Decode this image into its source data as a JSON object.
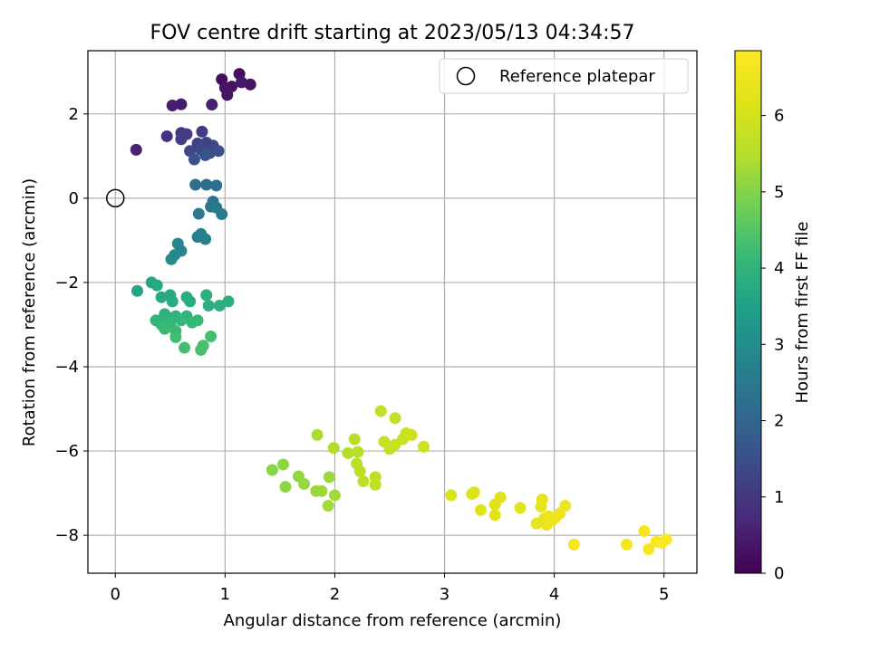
{
  "chart_data": {
    "type": "scatter",
    "title": "FOV centre drift starting at 2023/05/13 04:34:57",
    "xlabel": "Angular distance from reference (arcmin)",
    "ylabel": "Rotation from reference (arcmin)",
    "xlim": [
      -0.25,
      5.3
    ],
    "ylim": [
      -8.9,
      3.5
    ],
    "xticks": [
      0,
      1,
      2,
      3,
      4,
      5
    ],
    "yticks": [
      -8,
      -6,
      -4,
      -2,
      0,
      2
    ],
    "grid": true,
    "legend": {
      "placement": "top-right",
      "entries": [
        "Reference platepar"
      ]
    },
    "reference": {
      "x": 0,
      "y": 0
    },
    "colorbar": {
      "label": "Hours from first FF file",
      "range": [
        0,
        6.85
      ],
      "ticks": [
        0,
        1,
        2,
        3,
        4,
        5,
        6
      ],
      "colormap": "viridis"
    },
    "points": [
      {
        "x": 0.97,
        "y": 2.82,
        "t": 0.2
      },
      {
        "x": 1.13,
        "y": 2.95,
        "t": 0.25
      },
      {
        "x": 1.06,
        "y": 2.65,
        "t": 0.3
      },
      {
        "x": 1.23,
        "y": 2.7,
        "t": 0.3
      },
      {
        "x": 1.0,
        "y": 2.62,
        "t": 0.35
      },
      {
        "x": 1.02,
        "y": 2.45,
        "t": 0.35
      },
      {
        "x": 1.15,
        "y": 2.75,
        "t": 0.4
      },
      {
        "x": 0.6,
        "y": 2.23,
        "t": 0.45
      },
      {
        "x": 0.52,
        "y": 2.2,
        "t": 0.5
      },
      {
        "x": 0.88,
        "y": 2.22,
        "t": 0.55
      },
      {
        "x": 0.19,
        "y": 1.15,
        "t": 0.6
      },
      {
        "x": 0.47,
        "y": 1.47,
        "t": 0.9
      },
      {
        "x": 0.6,
        "y": 1.55,
        "t": 1.0
      },
      {
        "x": 0.65,
        "y": 1.52,
        "t": 1.05
      },
      {
        "x": 0.79,
        "y": 1.58,
        "t": 1.1
      },
      {
        "x": 0.6,
        "y": 1.4,
        "t": 1.15
      },
      {
        "x": 0.75,
        "y": 1.3,
        "t": 1.2
      },
      {
        "x": 0.83,
        "y": 1.32,
        "t": 1.25
      },
      {
        "x": 0.89,
        "y": 1.25,
        "t": 1.3
      },
      {
        "x": 0.68,
        "y": 1.12,
        "t": 1.35
      },
      {
        "x": 0.78,
        "y": 1.15,
        "t": 1.4
      },
      {
        "x": 0.86,
        "y": 1.07,
        "t": 1.45
      },
      {
        "x": 0.94,
        "y": 1.12,
        "t": 1.5
      },
      {
        "x": 0.72,
        "y": 0.92,
        "t": 1.55
      },
      {
        "x": 0.82,
        "y": 1.02,
        "t": 1.6
      },
      {
        "x": 0.73,
        "y": 0.32,
        "t": 2.2
      },
      {
        "x": 0.83,
        "y": 0.32,
        "t": 2.25
      },
      {
        "x": 0.92,
        "y": 0.3,
        "t": 2.3
      },
      {
        "x": 0.89,
        "y": -0.08,
        "t": 2.35
      },
      {
        "x": 0.87,
        "y": -0.2,
        "t": 2.4
      },
      {
        "x": 0.92,
        "y": -0.22,
        "t": 2.45
      },
      {
        "x": 0.76,
        "y": -0.37,
        "t": 2.5
      },
      {
        "x": 0.97,
        "y": -0.38,
        "t": 2.55
      },
      {
        "x": 0.78,
        "y": -0.85,
        "t": 2.6
      },
      {
        "x": 0.75,
        "y": -0.92,
        "t": 2.65
      },
      {
        "x": 0.82,
        "y": -0.97,
        "t": 2.7
      },
      {
        "x": 0.57,
        "y": -1.08,
        "t": 2.8
      },
      {
        "x": 0.6,
        "y": -1.25,
        "t": 2.85
      },
      {
        "x": 0.54,
        "y": -1.35,
        "t": 2.9
      },
      {
        "x": 0.51,
        "y": -1.45,
        "t": 2.95
      },
      {
        "x": 0.2,
        "y": -2.2,
        "t": 3.6
      },
      {
        "x": 0.33,
        "y": -2.0,
        "t": 3.65
      },
      {
        "x": 0.38,
        "y": -2.07,
        "t": 3.7
      },
      {
        "x": 0.42,
        "y": -2.35,
        "t": 3.7
      },
      {
        "x": 0.5,
        "y": -2.3,
        "t": 3.75
      },
      {
        "x": 0.52,
        "y": -2.45,
        "t": 3.75
      },
      {
        "x": 0.65,
        "y": -2.35,
        "t": 3.8
      },
      {
        "x": 0.68,
        "y": -2.45,
        "t": 3.8
      },
      {
        "x": 0.83,
        "y": -2.3,
        "t": 3.85
      },
      {
        "x": 0.85,
        "y": -2.55,
        "t": 3.85
      },
      {
        "x": 0.95,
        "y": -2.55,
        "t": 3.9
      },
      {
        "x": 1.03,
        "y": -2.45,
        "t": 3.9
      },
      {
        "x": 0.45,
        "y": -2.75,
        "t": 3.95
      },
      {
        "x": 0.5,
        "y": -2.85,
        "t": 3.95
      },
      {
        "x": 0.55,
        "y": -2.8,
        "t": 4.0
      },
      {
        "x": 0.65,
        "y": -2.8,
        "t": 4.0
      },
      {
        "x": 0.37,
        "y": -2.9,
        "t": 4.05
      },
      {
        "x": 0.42,
        "y": -3.0,
        "t": 4.05
      },
      {
        "x": 0.5,
        "y": -3.0,
        "t": 4.1
      },
      {
        "x": 0.6,
        "y": -2.9,
        "t": 4.1
      },
      {
        "x": 0.7,
        "y": -2.95,
        "t": 4.15
      },
      {
        "x": 0.75,
        "y": -2.9,
        "t": 4.15
      },
      {
        "x": 0.45,
        "y": -3.1,
        "t": 4.2
      },
      {
        "x": 0.55,
        "y": -3.15,
        "t": 4.2
      },
      {
        "x": 0.55,
        "y": -3.3,
        "t": 4.25
      },
      {
        "x": 0.87,
        "y": -3.28,
        "t": 4.3
      },
      {
        "x": 0.63,
        "y": -3.55,
        "t": 4.3
      },
      {
        "x": 0.8,
        "y": -3.5,
        "t": 4.35
      },
      {
        "x": 0.78,
        "y": -3.6,
        "t": 4.35
      },
      {
        "x": 1.43,
        "y": -6.45,
        "t": 5.05
      },
      {
        "x": 1.53,
        "y": -6.32,
        "t": 5.1
      },
      {
        "x": 1.55,
        "y": -6.85,
        "t": 5.1
      },
      {
        "x": 1.67,
        "y": -6.6,
        "t": 5.15
      },
      {
        "x": 1.72,
        "y": -6.78,
        "t": 5.2
      },
      {
        "x": 1.83,
        "y": -6.95,
        "t": 5.2
      },
      {
        "x": 1.88,
        "y": -6.95,
        "t": 5.25
      },
      {
        "x": 1.95,
        "y": -6.62,
        "t": 5.25
      },
      {
        "x": 1.94,
        "y": -7.3,
        "t": 5.3
      },
      {
        "x": 2.0,
        "y": -7.05,
        "t": 5.3
      },
      {
        "x": 1.84,
        "y": -5.62,
        "t": 5.4
      },
      {
        "x": 1.99,
        "y": -5.93,
        "t": 5.45
      },
      {
        "x": 2.12,
        "y": -6.05,
        "t": 5.5
      },
      {
        "x": 2.18,
        "y": -5.72,
        "t": 5.5
      },
      {
        "x": 2.21,
        "y": -6.02,
        "t": 5.55
      },
      {
        "x": 2.2,
        "y": -6.3,
        "t": 5.55
      },
      {
        "x": 2.23,
        "y": -6.48,
        "t": 5.6
      },
      {
        "x": 2.26,
        "y": -6.72,
        "t": 5.6
      },
      {
        "x": 2.37,
        "y": -6.62,
        "t": 5.65
      },
      {
        "x": 2.37,
        "y": -6.8,
        "t": 5.65
      },
      {
        "x": 2.42,
        "y": -5.05,
        "t": 5.7
      },
      {
        "x": 2.55,
        "y": -5.22,
        "t": 5.7
      },
      {
        "x": 2.45,
        "y": -5.78,
        "t": 5.75
      },
      {
        "x": 2.5,
        "y": -5.95,
        "t": 5.75
      },
      {
        "x": 2.55,
        "y": -5.85,
        "t": 5.8
      },
      {
        "x": 2.62,
        "y": -5.72,
        "t": 5.8
      },
      {
        "x": 2.65,
        "y": -5.58,
        "t": 5.85
      },
      {
        "x": 2.7,
        "y": -5.62,
        "t": 5.85
      },
      {
        "x": 2.81,
        "y": -5.9,
        "t": 5.9
      },
      {
        "x": 3.06,
        "y": -7.05,
        "t": 6.1
      },
      {
        "x": 3.25,
        "y": -7.02,
        "t": 6.15
      },
      {
        "x": 3.27,
        "y": -6.98,
        "t": 6.15
      },
      {
        "x": 3.33,
        "y": -7.4,
        "t": 6.2
      },
      {
        "x": 3.46,
        "y": -7.27,
        "t": 6.2
      },
      {
        "x": 3.51,
        "y": -7.1,
        "t": 6.25
      },
      {
        "x": 3.46,
        "y": -7.52,
        "t": 6.25
      },
      {
        "x": 3.69,
        "y": -7.35,
        "t": 6.3
      },
      {
        "x": 3.84,
        "y": -7.72,
        "t": 6.35
      },
      {
        "x": 3.88,
        "y": -7.32,
        "t": 6.35
      },
      {
        "x": 3.89,
        "y": -7.15,
        "t": 6.4
      },
      {
        "x": 3.91,
        "y": -7.6,
        "t": 6.4
      },
      {
        "x": 3.93,
        "y": -7.75,
        "t": 6.45
      },
      {
        "x": 3.95,
        "y": -7.55,
        "t": 6.45
      },
      {
        "x": 3.98,
        "y": -7.65,
        "t": 6.5
      },
      {
        "x": 4.01,
        "y": -7.58,
        "t": 6.5
      },
      {
        "x": 4.05,
        "y": -7.48,
        "t": 6.55
      },
      {
        "x": 4.1,
        "y": -7.3,
        "t": 6.55
      },
      {
        "x": 4.18,
        "y": -8.22,
        "t": 6.65
      },
      {
        "x": 4.66,
        "y": -8.22,
        "t": 6.7
      },
      {
        "x": 4.82,
        "y": -7.9,
        "t": 6.7
      },
      {
        "x": 4.86,
        "y": -8.33,
        "t": 6.75
      },
      {
        "x": 4.93,
        "y": -8.15,
        "t": 6.75
      },
      {
        "x": 4.98,
        "y": -8.18,
        "t": 6.8
      },
      {
        "x": 5.02,
        "y": -8.1,
        "t": 6.8
      }
    ]
  }
}
